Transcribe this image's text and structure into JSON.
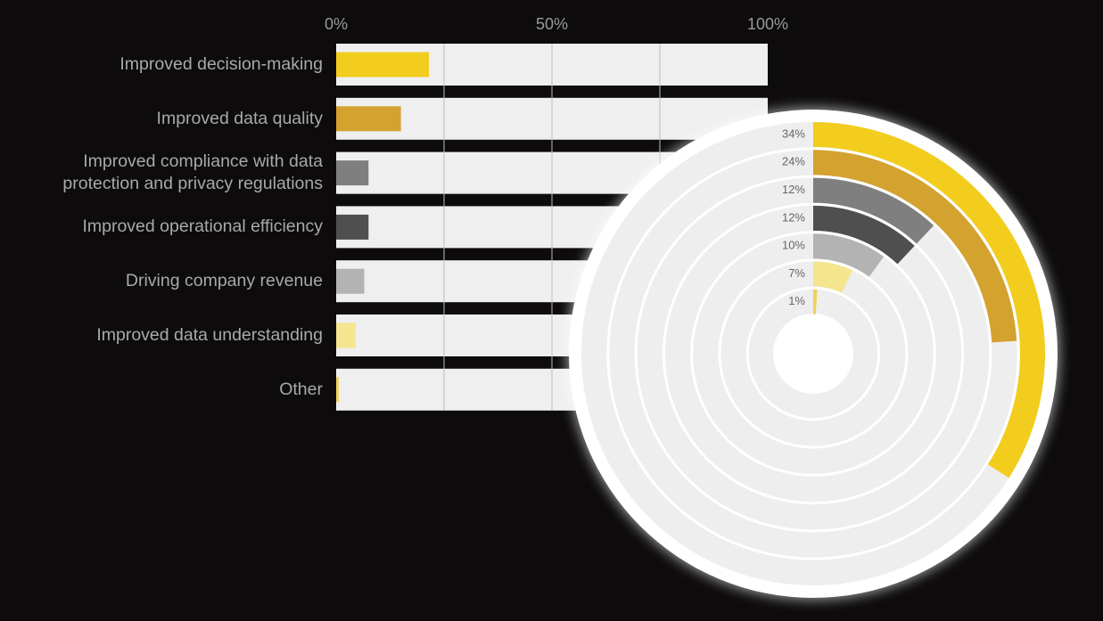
{
  "chart_data": [
    {
      "type": "hbar",
      "categories": [
        "Improved decision-making",
        "Improved data quality",
        "Improved compliance with data protection and privacy regulations",
        "Improved operational efficiency",
        "Driving company revenue",
        "Improved data understanding",
        "Other"
      ],
      "values": [
        21.5,
        15,
        7.5,
        7.5,
        6.5,
        4.5,
        0.6
      ],
      "colors": [
        "#f2cd1d",
        "#d3a22f",
        "#7f7f7f",
        "#4f4f4f",
        "#b3b3b3",
        "#f4e58e",
        "#efd25a"
      ],
      "xlim": [
        0,
        100
      ],
      "xticks": [
        {
          "value": 0,
          "label": "0%"
        },
        {
          "value": 50,
          "label": "50%"
        },
        {
          "value": 100,
          "label": "100%"
        }
      ],
      "grid": true,
      "minor_grid": true
    },
    {
      "type": "radialbar",
      "values": [
        34,
        24,
        12,
        12,
        10,
        7,
        1
      ],
      "value_labels": [
        "34%",
        "24%",
        "12%",
        "12%",
        "10%",
        "7%",
        "1%"
      ],
      "colors": [
        "#f2cd1d",
        "#d3a22f",
        "#7f7f7f",
        "#4f4f4f",
        "#b3b3b3",
        "#f4e58e",
        "#efd25a"
      ],
      "rlim": [
        0,
        100
      ]
    }
  ]
}
